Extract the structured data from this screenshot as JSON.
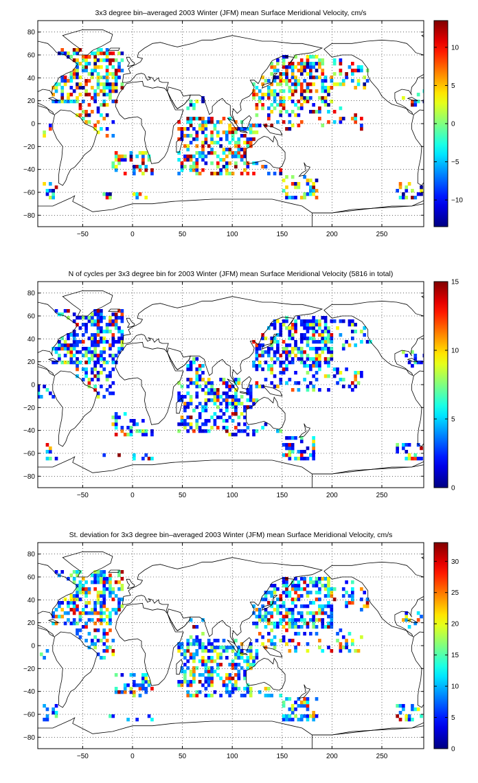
{
  "chart_data": [
    {
      "type": "heatmap",
      "title": "3x3 degree bin–averaged 2003 Winter (JFM) mean Surface Meridional Velocity, cm/s",
      "xlim": [
        -95,
        292
      ],
      "ylim": [
        -90,
        90
      ],
      "xticks": [
        -50,
        0,
        50,
        100,
        150,
        200,
        250
      ],
      "yticks": [
        80,
        60,
        40,
        20,
        0,
        -20,
        -40,
        -60,
        -80
      ],
      "grid": true,
      "colormap": "jet",
      "colorbar": {
        "min": -13.5,
        "max": 13.5,
        "ticks": [
          10,
          5,
          0,
          -5,
          -10
        ]
      },
      "seed": 11,
      "value_mode": "signed"
    },
    {
      "type": "heatmap",
      "title": "N of cycles per 3x3 degree bin for 2003 Winter (JFM) mean Surface Meridional Velocity (5816 in total)",
      "xlim": [
        -95,
        292
      ],
      "ylim": [
        -90,
        90
      ],
      "xticks": [
        -50,
        0,
        50,
        100,
        150,
        200,
        250
      ],
      "yticks": [
        80,
        60,
        40,
        20,
        0,
        -20,
        -40,
        -60,
        -80
      ],
      "grid": true,
      "colormap": "jet",
      "colorbar": {
        "min": 0,
        "max": 15,
        "ticks": [
          15,
          10,
          5,
          0
        ]
      },
      "seed": 23,
      "value_mode": "count"
    },
    {
      "type": "heatmap",
      "title": "St. deviation for 3x3 degree bin–averaged 2003 Winter (JFM) mean Surface Meridional Velocity, cm/s",
      "xlim": [
        -95,
        292
      ],
      "ylim": [
        -90,
        90
      ],
      "xticks": [
        -50,
        0,
        50,
        100,
        150,
        200,
        250
      ],
      "yticks": [
        80,
        60,
        40,
        20,
        0,
        -20,
        -40,
        -60,
        -80
      ],
      "grid": true,
      "colormap": "jet",
      "colorbar": {
        "min": 0,
        "max": 33,
        "ticks": [
          30,
          25,
          20,
          15,
          10,
          5,
          0
        ]
      },
      "seed": 37,
      "value_mode": "std"
    }
  ]
}
